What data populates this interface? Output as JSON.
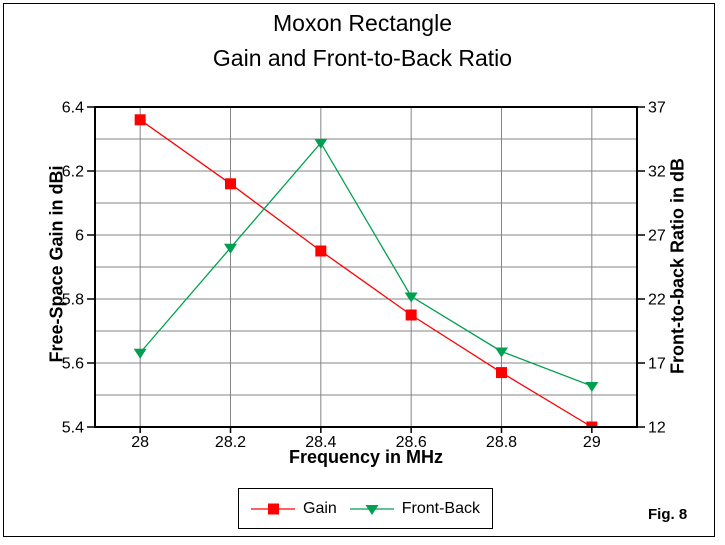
{
  "figure": {
    "title_line1": "Moxon Rectangle",
    "title_line2": "Gain and Front-to-Back Ratio",
    "fig_label": "Fig. 8"
  },
  "chart_data": {
    "type": "line",
    "title": "Moxon Rectangle - Gain and Front-to-Back Ratio",
    "x": [
      28,
      28.2,
      28.4,
      28.6,
      28.8,
      29
    ],
    "series": [
      {
        "name": "Gain",
        "axis": "left",
        "color": "#ff0000",
        "marker": "square",
        "values": [
          6.36,
          6.16,
          5.95,
          5.75,
          5.57,
          5.4
        ]
      },
      {
        "name": "Front-Back",
        "axis": "right",
        "color": "#00a050",
        "marker": "triangle-down",
        "values": [
          17.8,
          26,
          34.2,
          22.2,
          17.9,
          15.2
        ]
      }
    ],
    "xlabel": "Frequency in MHz",
    "ylabel_left": "Free-Space Gain in dBi",
    "ylabel_right": "Front-to-back Ratio in dB",
    "xlim": [
      27.9,
      29.1
    ],
    "ylim_left": [
      5.4,
      6.4
    ],
    "ylim_right": [
      12,
      37
    ],
    "xticks": [
      "28",
      "28.2",
      "28.4",
      "28.6",
      "28.8",
      "29"
    ],
    "yticks_left": [
      "5.4",
      "5.6",
      "5.8",
      "6",
      "6.2",
      "6.4"
    ],
    "yticks_right": [
      "12",
      "17",
      "22",
      "27",
      "32",
      "37"
    ],
    "ygrid_step_left": 0.1,
    "grid": true,
    "grid_color": "#848484",
    "legend_position": "bottom"
  }
}
